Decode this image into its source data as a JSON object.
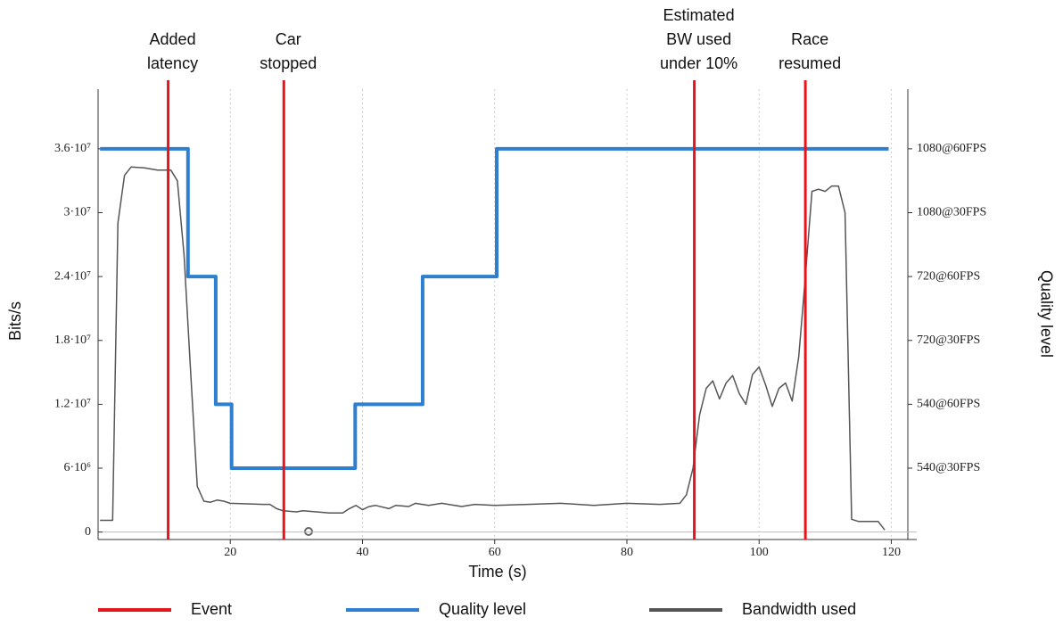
{
  "chart_data": {
    "type": "line",
    "xlabel": "Time (s)",
    "ylabel": "Bits/s",
    "y2label": "Quality level",
    "xlim": [
      0,
      122.5
    ],
    "ylim": [
      -700000,
      41600000
    ],
    "y2lim": [
      -700000,
      41600000
    ],
    "xticks": [
      20,
      40,
      60,
      80,
      100,
      120
    ],
    "yticks": [
      0,
      {
        "value": 6000000,
        "label": "6·10⁶"
      },
      {
        "value": 12000000,
        "label": "1.2·10⁷"
      },
      {
        "value": 18000000,
        "label": "1.8·10⁷"
      },
      {
        "value": 24000000,
        "label": "2.4·10⁷"
      },
      {
        "value": 30000000,
        "label": "3·10⁷"
      },
      {
        "value": 36000000,
        "label": "3.6·10⁷"
      }
    ],
    "y2ticks": [
      {
        "value": 6000000,
        "label": "540@30FPS"
      },
      {
        "value": 12000000,
        "label": "540@60FPS"
      },
      {
        "value": 18000000,
        "label": "720@30FPS"
      },
      {
        "value": 24000000,
        "label": "720@60FPS"
      },
      {
        "value": 30000000,
        "label": "1080@30FPS"
      },
      {
        "value": 36000000,
        "label": "1080@60FPS"
      }
    ],
    "grid": "x",
    "series": [
      {
        "name": "Event",
        "kind": "vline",
        "color": "#e8141c",
        "x": [
          10.6,
          28.1,
          90.2,
          107
        ],
        "labels": [
          [
            "Added",
            "latency"
          ],
          [
            "Car",
            "stopped"
          ],
          [
            "Estimated",
            "BW used",
            "under 10%"
          ],
          [
            "Race",
            "resumed"
          ]
        ]
      },
      {
        "name": "Quality level",
        "kind": "line",
        "axis": "y2",
        "color": "#2e7fd0",
        "x": [
          0.3,
          13.6,
          13.6,
          17.8,
          17.8,
          20.2,
          20.2,
          38.9,
          38.9,
          49.1,
          49.1,
          60.3,
          60.3,
          119.6
        ],
        "values": [
          36000000,
          36000000,
          24000000,
          24000000,
          12000000,
          12000000,
          6000000,
          6000000,
          12000000,
          12000000,
          24000000,
          24000000,
          36000000,
          36000000
        ]
      },
      {
        "name": "Bandwidth used",
        "kind": "line",
        "color": "#555555",
        "x": [
          0.3,
          2.2,
          3,
          4,
          5,
          7,
          9,
          11,
          12,
          13,
          14,
          15,
          16,
          17,
          18,
          19,
          20,
          25,
          26,
          27,
          28,
          30,
          31,
          33,
          35,
          37,
          38,
          39,
          40,
          41,
          42,
          44,
          45,
          47,
          48,
          50,
          52,
          55,
          57,
          60,
          65,
          70,
          75,
          80,
          85,
          88,
          89,
          90,
          91,
          92,
          93,
          94,
          95,
          96,
          97,
          98,
          99,
          100,
          101,
          102,
          103,
          104,
          105,
          106,
          107,
          108,
          109,
          110,
          111,
          112,
          113,
          114,
          115,
          117,
          118,
          119
        ],
        "values": [
          1100000,
          1100000,
          29000000,
          33500000,
          34300000,
          34200000,
          34000000,
          34000000,
          33000000,
          26000000,
          15000000,
          4300000,
          2900000,
          2800000,
          3000000,
          2900000,
          2700000,
          2600000,
          2600000,
          2200000,
          2000000,
          1900000,
          2000000,
          1900000,
          1800000,
          1800000,
          2200000,
          2500000,
          2100000,
          2400000,
          2500000,
          2200000,
          2500000,
          2400000,
          2700000,
          2500000,
          2700000,
          2400000,
          2600000,
          2500000,
          2600000,
          2700000,
          2500000,
          2700000,
          2600000,
          2700000,
          3500000,
          6000000,
          11000000,
          13500000,
          14200000,
          12500000,
          14000000,
          14700000,
          13000000,
          12000000,
          14800000,
          15500000,
          13800000,
          11800000,
          13500000,
          14000000,
          12300000,
          16500000,
          24000000,
          32000000,
          32200000,
          32000000,
          32500000,
          32500000,
          30000000,
          1200000,
          1000000,
          1000000,
          1000000,
          200000
        ]
      }
    ]
  }
}
